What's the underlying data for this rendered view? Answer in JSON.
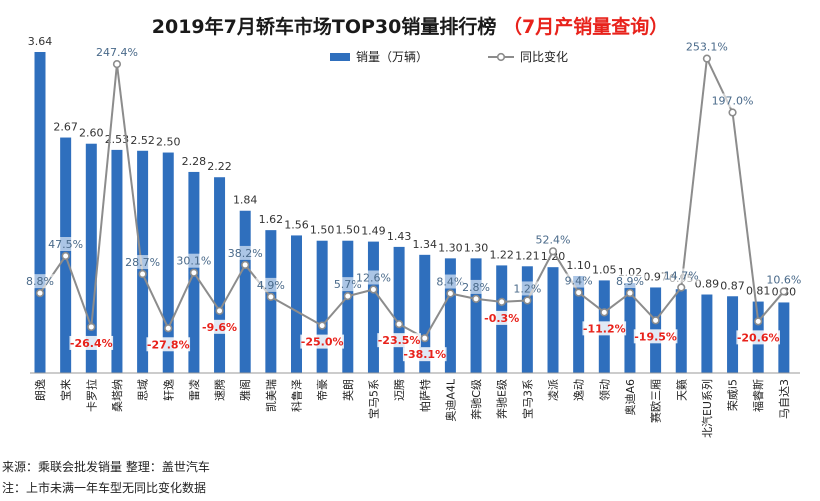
{
  "title": {
    "main": "2019年7月轿车市场TOP30销量排行榜",
    "sub": "（7月产销量查询）"
  },
  "chart_data": {
    "type": "bar",
    "categories": [
      "朗逸",
      "宝来",
      "卡罗拉",
      "桑塔纳",
      "思域",
      "轩逸",
      "雷凌",
      "速腾",
      "雅阁",
      "凯美瑞",
      "科鲁泽",
      "帝豪",
      "英朗",
      "宝马5系",
      "迈腾",
      "帕萨特",
      "奥迪A4L",
      "奔驰C级",
      "奔驰E级",
      "宝马3系",
      "凌派",
      "逸动",
      "领动",
      "奥迪A6",
      "赛欧三厢",
      "天籁",
      "北汽EU系列",
      "荣威i5",
      "福睿斯",
      "马自达3"
    ],
    "series": [
      {
        "name": "销量（万辆）",
        "type": "bar",
        "color": "#2f6fbd",
        "values": [
          3.64,
          2.67,
          2.6,
          2.53,
          2.52,
          2.5,
          2.28,
          2.22,
          1.84,
          1.62,
          1.56,
          1.5,
          1.5,
          1.49,
          1.43,
          1.34,
          1.3,
          1.3,
          1.22,
          1.21,
          1.2,
          1.1,
          1.05,
          1.02,
          0.97,
          0.95,
          0.89,
          0.87,
          0.81,
          0.8
        ],
        "labels": [
          "3.64",
          "2.67",
          "2.60",
          "2.53",
          "2.52",
          "2.50",
          "2.28",
          "2.22",
          "1.84",
          "1.62",
          "1.56",
          "1.50",
          "1.50",
          "1.49",
          "1.43",
          "1.34",
          "1.30",
          "1.30",
          "1.22",
          "1.21",
          "1.20",
          "1.10",
          "1.05",
          "1.02",
          "0.97",
          "0.95",
          "0.89",
          "0.87",
          "0.81",
          "0.80"
        ]
      },
      {
        "name": "同比变化",
        "type": "line",
        "color": "#8c8c8c",
        "values": [
          8.8,
          47.5,
          -26.4,
          247.4,
          28.7,
          -27.8,
          30.1,
          -9.6,
          38.2,
          4.9,
          null,
          -25.0,
          5.7,
          12.6,
          -23.5,
          -38.1,
          8.4,
          2.8,
          -0.3,
          1.2,
          52.4,
          9.4,
          -11.2,
          8.9,
          -19.5,
          14.7,
          253.1,
          197.0,
          -20.6,
          10.6
        ],
        "labels": [
          "8.8%",
          "47.5%",
          "-26.4%",
          "247.4%",
          "28.7%",
          "-27.8%",
          "30.1%",
          "-9.6%",
          "38.2%",
          "4.9%",
          "",
          "-25.0%",
          "5.7%",
          "12.6%",
          "-23.5%",
          "-38.1%",
          "8.4%",
          "2.8%",
          "-0.3%",
          "1.2%",
          "52.4%",
          "9.4%",
          "-11.2%",
          "8.9%",
          "-19.5%",
          "14.7%",
          "253.1%",
          "197.0%",
          "-20.6%",
          "10.6%"
        ]
      }
    ],
    "legend_position": "top-right",
    "negative_color": "#e8221b",
    "grid": false
  },
  "notes": {
    "source": "来源：乘联会批发销量  整理：盖世汽车",
    "note": "注：上市未满一年车型无同比变化数据"
  }
}
